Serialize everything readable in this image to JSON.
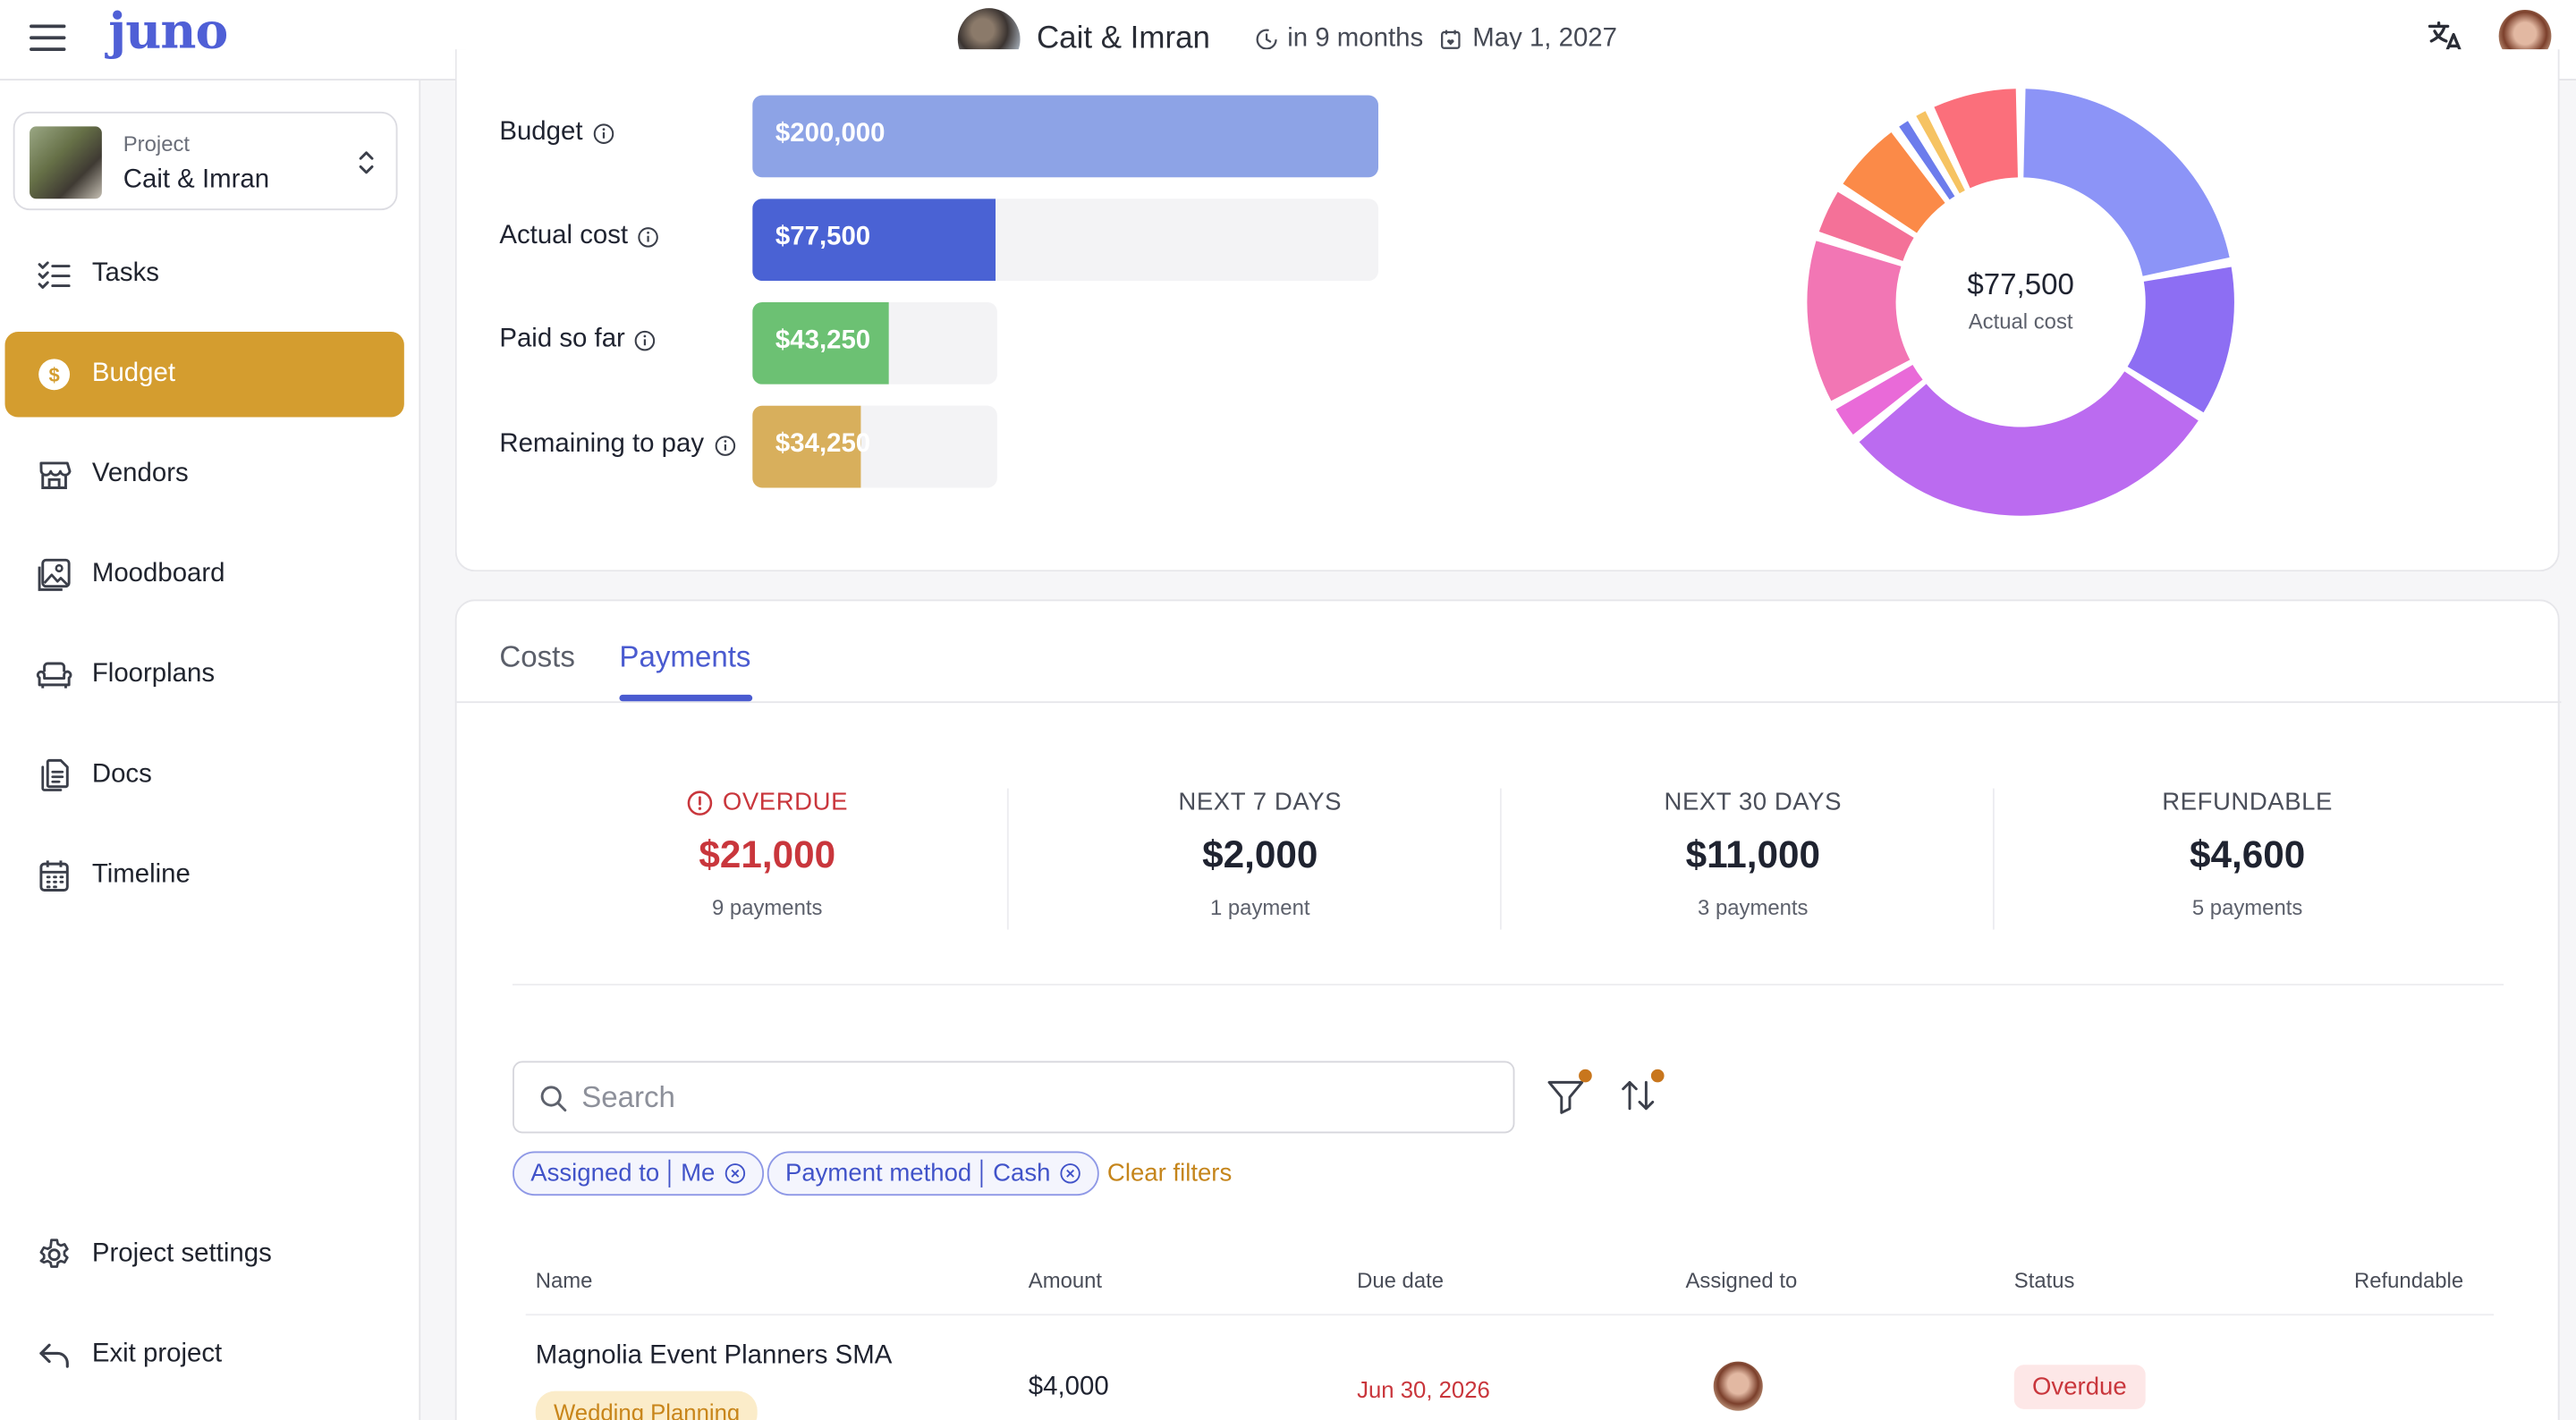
{
  "app": {
    "logo": "juno"
  },
  "header": {
    "couple": "Cait & Imran",
    "countdown": "in 9 months",
    "date": "May 1, 2027",
    "translate_icon": "translate-icon"
  },
  "sidebar": {
    "project_label": "Project",
    "project_name": "Cait & Imran",
    "items": [
      {
        "label": "Tasks",
        "icon": "tasks-icon"
      },
      {
        "label": "Budget",
        "icon": "dollar-icon",
        "active": true
      },
      {
        "label": "Vendors",
        "icon": "store-icon"
      },
      {
        "label": "Moodboard",
        "icon": "image-icon"
      },
      {
        "label": "Floorplans",
        "icon": "sofa-icon"
      },
      {
        "label": "Docs",
        "icon": "docs-icon"
      },
      {
        "label": "Timeline",
        "icon": "calendar-icon"
      }
    ],
    "footer": [
      {
        "label": "Project settings",
        "icon": "gear-icon"
      },
      {
        "label": "Exit project",
        "icon": "exit-icon"
      }
    ]
  },
  "budget": {
    "rows": [
      {
        "label": "Budget",
        "value": "$200,000",
        "amount": 200000,
        "color": "#8da3e6"
      },
      {
        "label": "Actual cost",
        "value": "$77,500",
        "amount": 77500,
        "color": "#4a62d4"
      },
      {
        "label": "Paid so far",
        "value": "$43,250",
        "amount": 43250,
        "color": "#6cc173"
      },
      {
        "label": "Remaining to pay",
        "value": "$34,250",
        "amount": 34250,
        "color": "#d8af5c"
      }
    ],
    "donut": {
      "center_value": "$77,500",
      "center_label": "Actual cost",
      "segments": [
        {
          "value": 22,
          "color": "#8c94f7"
        },
        {
          "value": 12,
          "color": "#8d6ef3"
        },
        {
          "value": 30,
          "color": "#bb6bf0"
        },
        {
          "value": 3,
          "color": "#e96ad8"
        },
        {
          "value": 13,
          "color": "#f276b4"
        },
        {
          "value": 4,
          "color": "#f47198"
        },
        {
          "value": 6,
          "color": "#fb8a48"
        },
        {
          "value": 1.5,
          "color": "#6c7cec"
        },
        {
          "value": 1.5,
          "color": "#f6c362"
        },
        {
          "value": 7,
          "color": "#fb6f7b"
        }
      ]
    }
  },
  "payments": {
    "tabs": [
      "Costs",
      "Payments"
    ],
    "active_tab": "Payments",
    "stats": [
      {
        "title": "OVERDUE",
        "value": "$21,000",
        "sub": "9 payments"
      },
      {
        "title": "NEXT 7 DAYS",
        "value": "$2,000",
        "sub": "1 payment"
      },
      {
        "title": "NEXT 30 DAYS",
        "value": "$11,000",
        "sub": "3 payments"
      },
      {
        "title": "REFUNDABLE",
        "value": "$4,600",
        "sub": "5 payments"
      }
    ],
    "search": {
      "placeholder": "Search",
      "value": ""
    },
    "filters": [
      {
        "field": "Assigned to",
        "value": "Me"
      },
      {
        "field": "Payment method",
        "value": "Cash"
      }
    ],
    "clear_filters": "Clear filters",
    "columns": [
      "Name",
      "Amount",
      "Due date",
      "Assigned to",
      "Status",
      "Refundable"
    ],
    "rows": [
      {
        "name": "Magnolia Event Planners SMA",
        "category": "Wedding Planning",
        "amount": "$4,000",
        "due": "Jun 30, 2026",
        "status": "Overdue"
      }
    ]
  }
}
